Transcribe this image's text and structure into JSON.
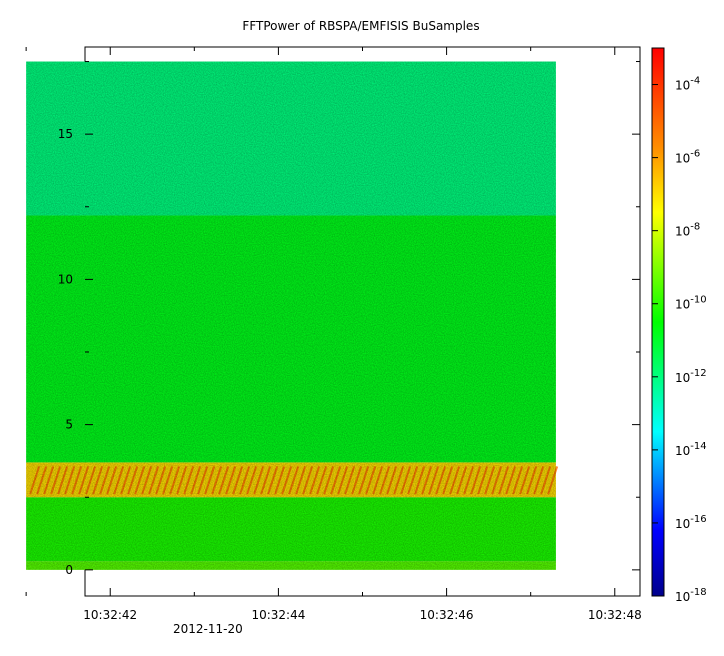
{
  "chart_data": {
    "type": "heatmap",
    "title": "FFTPower of RBSPA/EMFISIS  BuSamples",
    "date_label": "2012-11-20",
    "xlabel": "",
    "ylabel": "",
    "x": {
      "start": "10:32:41.7",
      "end": "10:32:48.3",
      "data_start": "10:32:41.0",
      "data_end": "10:32:47.3",
      "major_ticks": [
        "10:32:42",
        "10:32:44",
        "10:32:46",
        "10:32:48"
      ],
      "minor_ticks": [
        "10:32:41",
        "10:32:43",
        "10:32:45",
        "10:32:47"
      ]
    },
    "y": {
      "range": [
        -0.9,
        18.0
      ],
      "data_range": [
        0,
        17.5
      ],
      "ticks": [
        "0",
        "5",
        "10",
        "15"
      ],
      "minor_ticks": [
        2.5,
        7.5,
        12.5,
        17.5
      ]
    },
    "colorbar": {
      "scale": "log",
      "range": [
        1e-18,
        0.001
      ],
      "tick_labels": [
        {
          "base": "10",
          "exp": "-4",
          "value": -4
        },
        {
          "base": "10",
          "exp": "-6",
          "value": -6
        },
        {
          "base": "10",
          "exp": "-8",
          "value": -8
        },
        {
          "base": "10",
          "exp": "-10",
          "value": -10
        },
        {
          "base": "10",
          "exp": "-12",
          "value": -12
        },
        {
          "base": "10",
          "exp": "-14",
          "value": -14
        },
        {
          "base": "10",
          "exp": "-16",
          "value": -16
        },
        {
          "base": "10",
          "exp": "-18",
          "value": -18
        }
      ],
      "colors": [
        "#00008b",
        "#0000ff",
        "#00ffff",
        "#00ff00",
        "#ffff00",
        "#ff8c00",
        "#ff0000"
      ]
    },
    "bands": [
      {
        "y_from": 0.0,
        "y_to": 0.3,
        "log_power": -9.5
      },
      {
        "y_from": 0.3,
        "y_to": 2.5,
        "log_power": -10.2
      },
      {
        "y_from": 2.5,
        "y_to": 3.7,
        "log_power": -7.0
      },
      {
        "y_from": 3.7,
        "y_to": 12.2,
        "log_power": -10.8
      },
      {
        "y_from": 12.2,
        "y_to": 17.5,
        "log_power": -12.0
      }
    ],
    "grid": false,
    "legend": "colorbar-right"
  }
}
